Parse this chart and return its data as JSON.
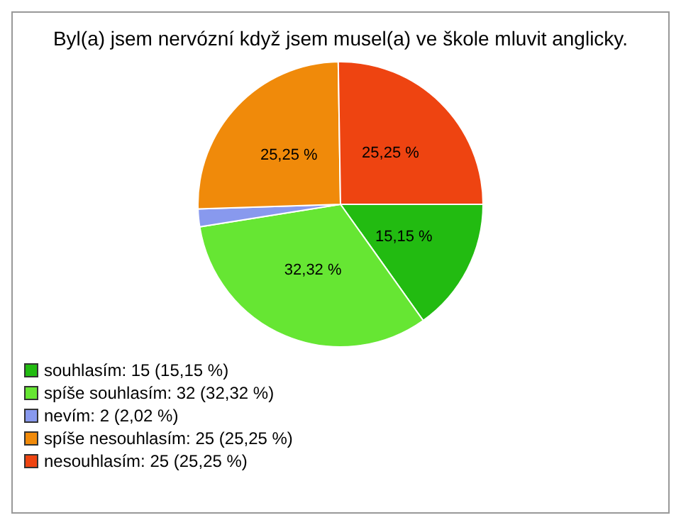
{
  "chart_data": {
    "type": "pie",
    "title": "Byl(a) jsem nervózní když jsem musel(a) ve škole mluvit anglicky.",
    "categories": [
      "souhlasím: 15 (15,15 %)",
      "spíše souhlasím: 32 (32,32 %)",
      "nevím: 2 (2,02 %)",
      "spíše nesouhlasím: 25 (25,25 %)",
      "nesouhlasím: 25 (25,25 %)"
    ],
    "values": [
      15.15,
      32.32,
      2.02,
      25.25,
      25.25
    ],
    "value_labels": [
      "15,15 %",
      "32,32 %",
      null,
      "25,25 %",
      "25,25 %"
    ],
    "colors": [
      "#22bb11",
      "#66e633",
      "#8899ee",
      "#f08a0a",
      "#ee4411"
    ],
    "legend": "bottom left"
  }
}
